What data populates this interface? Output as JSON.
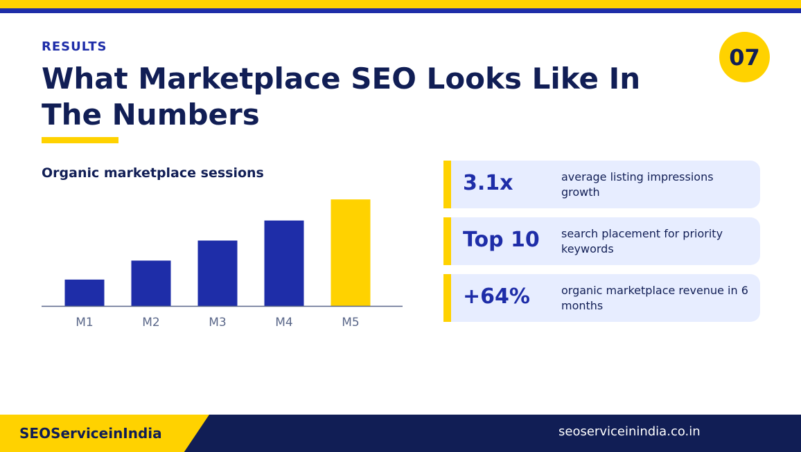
{
  "header": {
    "eyebrow": "RESULTS",
    "title": "What Marketplace SEO Looks Like In The Numbers",
    "page_number": "07"
  },
  "colors": {
    "accent_yellow": "#FFD200",
    "brand_blue": "#1E2DA8",
    "navy": "#111E55",
    "card_bg": "#E7EDFF"
  },
  "chart_data": {
    "type": "bar",
    "title": "Organic marketplace sessions",
    "categories": [
      "M1",
      "M2",
      "M3",
      "M4",
      "M5"
    ],
    "values": [
      25,
      43,
      62,
      81,
      101
    ],
    "highlight_index": 4,
    "bar_color": "#1E2DA8",
    "highlight_color": "#FFD200",
    "ylim": [
      0,
      105
    ],
    "grid": false,
    "legend": "none",
    "xlabel": "",
    "ylabel": ""
  },
  "stats": [
    {
      "value": "3.1x",
      "description": "average listing impressions growth"
    },
    {
      "value": "Top 10",
      "description": "search placement for priority keywords"
    },
    {
      "value": "+64%",
      "description": "organic marketplace revenue in 6 months"
    }
  ],
  "footer": {
    "brand": "SEOServiceinIndia",
    "url": "seoserviceinindia.co.in"
  }
}
